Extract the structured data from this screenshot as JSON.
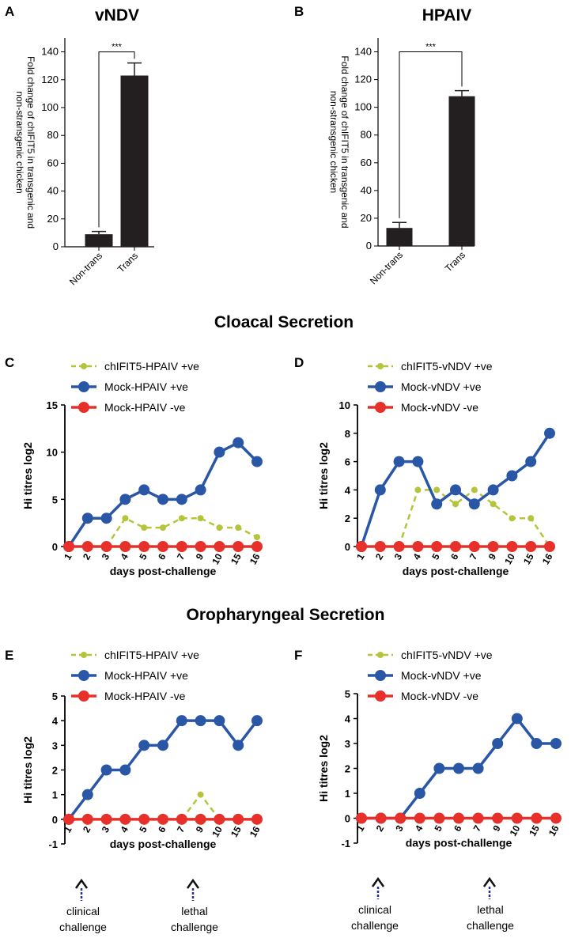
{
  "colors": {
    "bar": "#231f20",
    "axis": "#000000",
    "ivgreen": "#b5c43a",
    "mockblue": "#2a56a6",
    "negred": "#e8302a",
    "arrowdash": "#2f2f8f"
  },
  "section_titles": {
    "cloacal": "Cloacal Secretion",
    "oro": "Oropharyngeal Secretion"
  },
  "annotations": {
    "clinical_line1": "clinical",
    "clinical_line2": "challenge",
    "lethal_line1": "lethal",
    "lethal_line2": "challenge"
  },
  "chart_data": [
    {
      "panel": "A",
      "type": "bar",
      "title": "vNDV",
      "ylabel_line1": "Fold change of chIFIT5 in transgenic and",
      "ylabel_line2": "non-stransgenic chicken",
      "categories": [
        "Non-trans",
        "Trans"
      ],
      "values": [
        9,
        123
      ],
      "errors": [
        2,
        9
      ],
      "ylim": [
        0,
        150
      ],
      "yticks": [
        0,
        20,
        40,
        60,
        80,
        100,
        120,
        140
      ],
      "significance": "***"
    },
    {
      "panel": "B",
      "type": "bar",
      "title": "HPAIV",
      "ylabel_line1": "Fold change of chIFIT5 in transgenic and",
      "ylabel_line2": "non-stransgenic chicken",
      "categories": [
        "Non-trans",
        "Trans"
      ],
      "values": [
        13,
        108
      ],
      "errors": [
        4,
        4
      ],
      "ylim": [
        0,
        150
      ],
      "yticks": [
        0,
        20,
        40,
        60,
        80,
        100,
        120,
        140
      ],
      "significance": "***"
    },
    {
      "panel": "C",
      "type": "line",
      "xlabel": "days post-challenge",
      "ylabel": "Hi titres log2",
      "x": [
        "1",
        "2",
        "3",
        "4",
        "5",
        "6",
        "7",
        "9",
        "10",
        "15",
        "16"
      ],
      "ylim": [
        0,
        15
      ],
      "yticks": [
        0,
        5,
        10,
        15
      ],
      "series": [
        {
          "name": "chIFIT5-HPAIV +ve",
          "style": "dashed",
          "values": [
            null,
            null,
            0,
            3,
            2,
            2,
            3,
            3,
            2,
            2,
            1
          ]
        },
        {
          "name": "Mock-HPAIV +ve",
          "style": "solid",
          "values": [
            0,
            3,
            3,
            5,
            6,
            5,
            5,
            6,
            10,
            11,
            9
          ]
        },
        {
          "name": "Mock-HPAIV -ve",
          "style": "solid",
          "values": [
            0,
            0,
            0,
            0,
            0,
            0,
            0,
            0,
            0,
            0,
            0
          ]
        }
      ]
    },
    {
      "panel": "D",
      "type": "line",
      "xlabel": "days post-challenge",
      "ylabel": "Hi titres log2",
      "x": [
        "1",
        "2",
        "3",
        "4",
        "5",
        "6",
        "7",
        "9",
        "10",
        "15",
        "16"
      ],
      "ylim": [
        0,
        10
      ],
      "yticks": [
        0,
        2,
        4,
        6,
        8,
        10
      ],
      "series": [
        {
          "name": "chIFIT5-vNDV +ve",
          "style": "dashed",
          "values": [
            null,
            null,
            0,
            4,
            4,
            3,
            4,
            3,
            2,
            2,
            0
          ]
        },
        {
          "name": "Mock-vNDV +ve",
          "style": "solid",
          "values": [
            0,
            4,
            6,
            6,
            3,
            4,
            3,
            4,
            5,
            6,
            8
          ]
        },
        {
          "name": "Mock-vNDV -ve",
          "style": "solid",
          "values": [
            0,
            0,
            0,
            0,
            0,
            0,
            0,
            0,
            0,
            0,
            0
          ]
        }
      ]
    },
    {
      "panel": "E",
      "type": "line",
      "xlabel": "days post-challenge",
      "ylabel": "Hi titres log2",
      "x": [
        "1",
        "2",
        "3",
        "4",
        "5",
        "6",
        "7",
        "9",
        "10",
        "15",
        "16"
      ],
      "ylim": [
        -1,
        5
      ],
      "yticks": [
        -1,
        0,
        1,
        2,
        3,
        4,
        5
      ],
      "series": [
        {
          "name": "chIFIT5-HPAIV +ve",
          "style": "dashed",
          "values": [
            null,
            null,
            null,
            null,
            null,
            null,
            0,
            1,
            0,
            null,
            null
          ]
        },
        {
          "name": "Mock-HPAIV +ve",
          "style": "solid",
          "values": [
            0,
            1,
            2,
            2,
            3,
            3,
            4,
            4,
            4,
            3,
            4
          ]
        },
        {
          "name": "Mock-HPAIV -ve",
          "style": "solid",
          "values": [
            0,
            0,
            0,
            0,
            0,
            0,
            0,
            0,
            0,
            0,
            0
          ]
        }
      ]
    },
    {
      "panel": "F",
      "type": "line",
      "xlabel": "days post-challenge",
      "ylabel": "Hi titres log2",
      "x": [
        "1",
        "2",
        "3",
        "4",
        "5",
        "6",
        "7",
        "9",
        "10",
        "15",
        "16"
      ],
      "ylim": [
        -1,
        5
      ],
      "yticks": [
        -1,
        0,
        1,
        2,
        3,
        4,
        5
      ],
      "series": [
        {
          "name": "chIFIT5-vNDV +ve",
          "style": "dashed",
          "values": [
            null,
            null,
            null,
            null,
            null,
            null,
            null,
            null,
            null,
            null,
            null
          ]
        },
        {
          "name": "Mock-vNDV +ve",
          "style": "solid",
          "values": [
            0,
            0,
            0,
            1,
            2,
            2,
            2,
            3,
            4,
            3,
            3
          ]
        },
        {
          "name": "Mock-vNDV -ve",
          "style": "solid",
          "values": [
            0,
            0,
            0,
            0,
            0,
            0,
            0,
            0,
            0,
            0,
            0
          ]
        }
      ]
    }
  ]
}
